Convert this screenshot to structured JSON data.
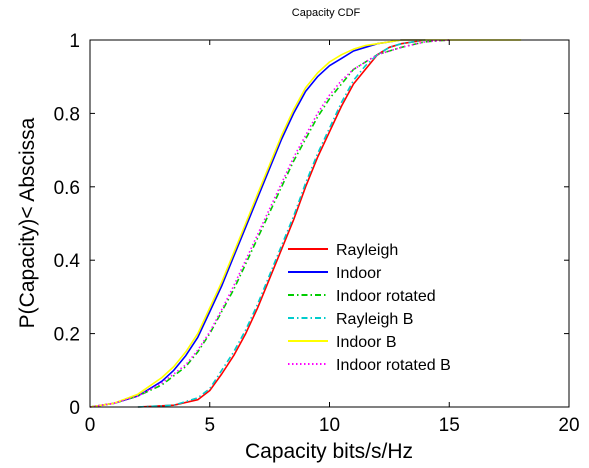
{
  "chart_data": {
    "type": "line",
    "title": "Capacity CDF",
    "xlabel": "Capacity bits/s/Hz",
    "ylabel": "P(Capacity)< Abscissa",
    "xlim": [
      0,
      20
    ],
    "ylim": [
      0,
      1
    ],
    "xticks": [
      0,
      5,
      10,
      15,
      20
    ],
    "yticks": [
      0,
      0.2,
      0.4,
      0.6,
      0.8,
      1
    ],
    "ytick_labels": [
      "0",
      "0.2",
      "0.4",
      "0.6",
      "0.8",
      "1"
    ],
    "grid": false,
    "legend_position": "lower-right",
    "series": [
      {
        "name": "Rayleigh",
        "color": "#ff0000",
        "dash": "solid",
        "x": [
          2,
          3.5,
          4.5,
          5,
          5.5,
          6,
          6.5,
          7,
          7.5,
          8,
          8.5,
          9,
          9.5,
          10,
          10.5,
          11,
          11.5,
          12,
          12.5,
          13,
          14
        ],
        "y": [
          0,
          0.005,
          0.02,
          0.045,
          0.09,
          0.14,
          0.2,
          0.27,
          0.35,
          0.43,
          0.51,
          0.6,
          0.68,
          0.75,
          0.82,
          0.88,
          0.92,
          0.96,
          0.98,
          0.99,
          1.0
        ]
      },
      {
        "name": "Indoor",
        "color": "#0000ff",
        "dash": "solid",
        "x": [
          0,
          1,
          2,
          3,
          3.5,
          4,
          4.5,
          5,
          5.5,
          6,
          6.5,
          7,
          7.5,
          8,
          8.5,
          9,
          9.5,
          10,
          10.5,
          11,
          11.5,
          12,
          13,
          14
        ],
        "y": [
          0,
          0.01,
          0.03,
          0.07,
          0.1,
          0.14,
          0.19,
          0.26,
          0.33,
          0.41,
          0.49,
          0.57,
          0.65,
          0.73,
          0.8,
          0.86,
          0.9,
          0.93,
          0.95,
          0.97,
          0.98,
          0.99,
          1.0,
          1.0
        ]
      },
      {
        "name": "Indoor rotated",
        "color": "#00cc00",
        "dash": "dashdot",
        "x": [
          0,
          1,
          2,
          3,
          4,
          4.5,
          5,
          5.5,
          6,
          6.5,
          7,
          7.5,
          8,
          8.5,
          9,
          9.5,
          10,
          10.5,
          11,
          12,
          13,
          14,
          15
        ],
        "y": [
          0,
          0.01,
          0.03,
          0.06,
          0.11,
          0.15,
          0.2,
          0.26,
          0.32,
          0.39,
          0.46,
          0.53,
          0.6,
          0.67,
          0.73,
          0.79,
          0.84,
          0.88,
          0.92,
          0.96,
          0.98,
          0.995,
          1.0
        ]
      },
      {
        "name": "Rayleigh B",
        "color": "#00cccc",
        "dash": "dashdot",
        "x": [
          2,
          3.5,
          4.5,
          5,
          5.5,
          6,
          6.5,
          7,
          7.5,
          8,
          8.5,
          9,
          9.5,
          10,
          10.5,
          11,
          11.5,
          12,
          12.5,
          13,
          14
        ],
        "y": [
          0,
          0.005,
          0.025,
          0.05,
          0.1,
          0.15,
          0.21,
          0.28,
          0.36,
          0.44,
          0.52,
          0.61,
          0.69,
          0.76,
          0.83,
          0.89,
          0.93,
          0.96,
          0.98,
          0.99,
          1.0
        ]
      },
      {
        "name": "Indoor B",
        "color": "#ffff00",
        "dash": "solid",
        "x": [
          0,
          1,
          2,
          3,
          3.5,
          4,
          4.5,
          5,
          5.5,
          6,
          6.5,
          7,
          7.5,
          8,
          8.5,
          9,
          9.5,
          10,
          10.5,
          11,
          11.5,
          12,
          13,
          14,
          16,
          18
        ],
        "y": [
          0,
          0.01,
          0.035,
          0.08,
          0.11,
          0.15,
          0.2,
          0.27,
          0.34,
          0.42,
          0.5,
          0.58,
          0.66,
          0.74,
          0.81,
          0.87,
          0.91,
          0.94,
          0.96,
          0.975,
          0.985,
          0.99,
          1.0,
          1.0,
          1.0,
          1.0
        ]
      },
      {
        "name": "Indoor rotated B",
        "color": "#ff00ff",
        "dash": "dotted",
        "x": [
          0,
          1,
          2,
          3,
          4,
          4.5,
          5,
          5.5,
          6,
          6.5,
          7,
          7.5,
          8,
          8.5,
          9,
          9.5,
          10,
          10.5,
          11,
          12,
          13,
          14,
          15
        ],
        "y": [
          0,
          0.01,
          0.03,
          0.065,
          0.115,
          0.155,
          0.205,
          0.265,
          0.33,
          0.4,
          0.47,
          0.54,
          0.61,
          0.68,
          0.74,
          0.8,
          0.85,
          0.89,
          0.92,
          0.96,
          0.98,
          0.995,
          1.0
        ]
      }
    ]
  }
}
